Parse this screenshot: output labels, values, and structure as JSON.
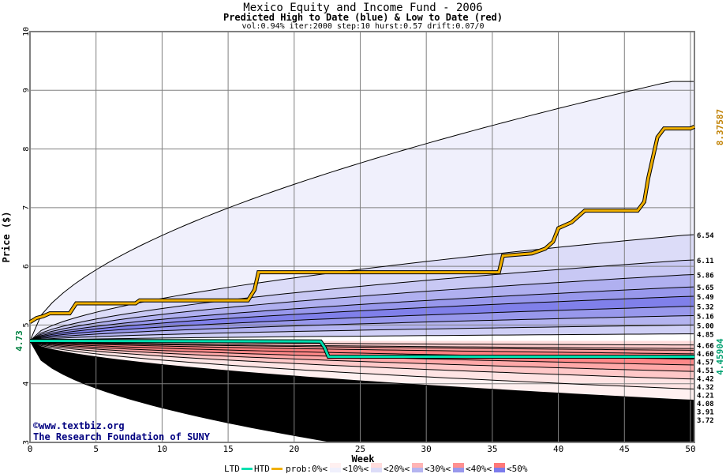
{
  "chart_data": {
    "type": "area",
    "title": "Mexico Equity and Income Fund - 2006",
    "subtitle": "Predicted High to Date (blue) &  Low to Date (red)",
    "params": "vol:0.94% iter:2000 step:10 hurst:0.57 drift:0.07/0",
    "xlabel": "Week",
    "ylabel": "Price ($)",
    "xlim": [
      0,
      50.3
    ],
    "ylim": [
      3,
      10
    ],
    "xticks": [
      0,
      5,
      10,
      15,
      20,
      25,
      30,
      35,
      40,
      45,
      50
    ],
    "yticks": [
      3,
      4,
      5,
      6,
      7,
      8,
      9,
      10
    ],
    "start_price": 4.73,
    "start_label": "4.73",
    "hurst": 0.57,
    "upper_max": 9.15,
    "lower_min": 3.0,
    "upper_band_ends": [
      6.54,
      6.11,
      5.86,
      5.65,
      5.49,
      5.32,
      5.16,
      5.0,
      4.85
    ],
    "upper_band_labels": [
      "6.54",
      "6.11",
      "5.86",
      "5.65",
      "5.49",
      "5.32",
      "5.16",
      "5.00",
      "4.85"
    ],
    "lower_band_ends": [
      4.66,
      4.6,
      4.57,
      4.51,
      4.42,
      4.32,
      4.21,
      4.08,
      3.91,
      3.72
    ],
    "lower_band_labels": [
      "4.66",
      "4.60",
      "4.57",
      "4.51",
      "4.42",
      "4.32",
      "4.21",
      "4.08",
      "3.91",
      "3.72"
    ],
    "upper_fills": [
      "#f0f0fc",
      "#dcdcf8",
      "#c8c8f4",
      "#b0b0f0",
      "#9898ec",
      "#8080ea",
      "#9898ec",
      "#b4b4f0",
      "#d0d0f6",
      "#ffffff"
    ],
    "lower_fills": [
      "#fff0f0",
      "#ffdcdc",
      "#ffcccc",
      "#ffb4b4",
      "#ff9c9c",
      "#ff8080",
      "#ff8888",
      "#ffa8a8",
      "#ffc8c8",
      "#ffe4e4",
      "#fff0f0"
    ],
    "series": [
      {
        "name": "HTD",
        "color": "#f0b000",
        "final_label": "8.37587",
        "points": [
          [
            0,
            5.05
          ],
          [
            0.5,
            5.12
          ],
          [
            1,
            5.15
          ],
          [
            1.5,
            5.2
          ],
          [
            3,
            5.2
          ],
          [
            3.5,
            5.37
          ],
          [
            8,
            5.37
          ],
          [
            8.3,
            5.42
          ],
          [
            16.5,
            5.42
          ],
          [
            17,
            5.6
          ],
          [
            17.3,
            5.9
          ],
          [
            35.5,
            5.9
          ],
          [
            35.8,
            6.18
          ],
          [
            38,
            6.22
          ],
          [
            39,
            6.3
          ],
          [
            39.6,
            6.42
          ],
          [
            40,
            6.65
          ],
          [
            41,
            6.75
          ],
          [
            42,
            6.95
          ],
          [
            46,
            6.95
          ],
          [
            46.5,
            7.1
          ],
          [
            46.8,
            7.5
          ],
          [
            47.5,
            8.2
          ],
          [
            48,
            8.35
          ],
          [
            50,
            8.35
          ],
          [
            50.3,
            8.38
          ]
        ]
      },
      {
        "name": "LTD",
        "color": "#00e0b0",
        "final_label": "4.45904",
        "points": [
          [
            0,
            4.73
          ],
          [
            22,
            4.72
          ],
          [
            22.3,
            4.62
          ],
          [
            22.6,
            4.46
          ],
          [
            50.3,
            4.46
          ]
        ]
      }
    ],
    "legend": {
      "ltd": "LTD",
      "htd": "HTD",
      "prob": "prob:0%<",
      "items": [
        "<10%<",
        "<20%<",
        "<30%<",
        "<40%<",
        "<50%"
      ],
      "swatch_top": [
        "#fff0f0",
        "#ffdcdc",
        "#ffb4b4",
        "#ff9090",
        "#ff7878"
      ],
      "swatch_bottom": [
        "#f0f0fc",
        "#dcdcf8",
        "#b4b4f0",
        "#9898ec",
        "#7c7cec"
      ]
    },
    "watermark": [
      "©www.textbiz.org",
      "The Research Foundation of SUNY"
    ]
  }
}
